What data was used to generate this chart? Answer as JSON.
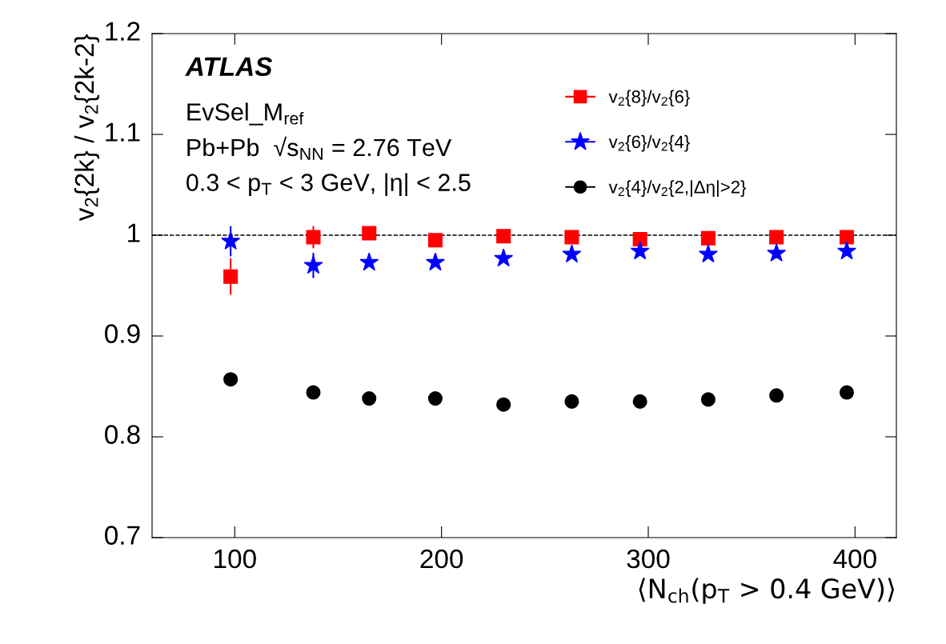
{
  "chart_data": {
    "type": "scatter",
    "xlabel": "⟨N$_{ch}$(p$_{T}$ > 0.4 GeV)⟩",
    "ylabel": "v$_{2}${2k} / v$_{2}${2k-2}",
    "x": [
      98,
      138,
      165,
      197,
      230,
      263,
      296,
      329,
      362,
      396
    ],
    "series": [
      {
        "name": "v$_{2}${8}/v$_{2}${6}",
        "color": "#ff0000",
        "marker": "square",
        "values": [
          0.959,
          0.998,
          1.002,
          0.995,
          0.999,
          0.998,
          0.996,
          0.997,
          0.998,
          0.998
        ],
        "errors": [
          0.018,
          0.011,
          null,
          null,
          null,
          null,
          null,
          null,
          null,
          null
        ]
      },
      {
        "name": "v$_{2}${6}/v$_{2}${4}",
        "color": "#0000ff",
        "marker": "star",
        "values": [
          0.994,
          0.97,
          0.973,
          0.973,
          0.977,
          0.981,
          0.984,
          0.981,
          0.982,
          0.984
        ],
        "errors": [
          0.015,
          0.0125,
          null,
          null,
          null,
          null,
          null,
          null,
          null,
          null
        ]
      },
      {
        "name": "v$_{2}${4}/v$_{2}${2,|Δη|>2}",
        "color": "#000000",
        "marker": "circle",
        "values": [
          0.857,
          0.844,
          0.838,
          0.838,
          0.832,
          0.835,
          0.835,
          0.837,
          0.841,
          0.844
        ]
      }
    ],
    "xlim": [
      60,
      420
    ],
    "xticks": [
      100,
      200,
      300,
      400
    ],
    "ylim": [
      0.7,
      1.2
    ],
    "yticks": [
      0.7,
      0.8,
      0.9,
      1,
      1.1,
      1.2
    ],
    "ref_lines": [
      {
        "axis": "y",
        "value": 1,
        "color": "#000000",
        "line_style": "dashed"
      }
    ],
    "legend": "top right",
    "grid": false,
    "annotations": [
      "ATLAS",
      "EvSel_M$_{ref}$",
      "Pb+Pb  √s$_{NN}$ = 2.76 TeV",
      "0.3 < p$_{T}$ < 3 GeV, |η| < 2.5"
    ]
  }
}
